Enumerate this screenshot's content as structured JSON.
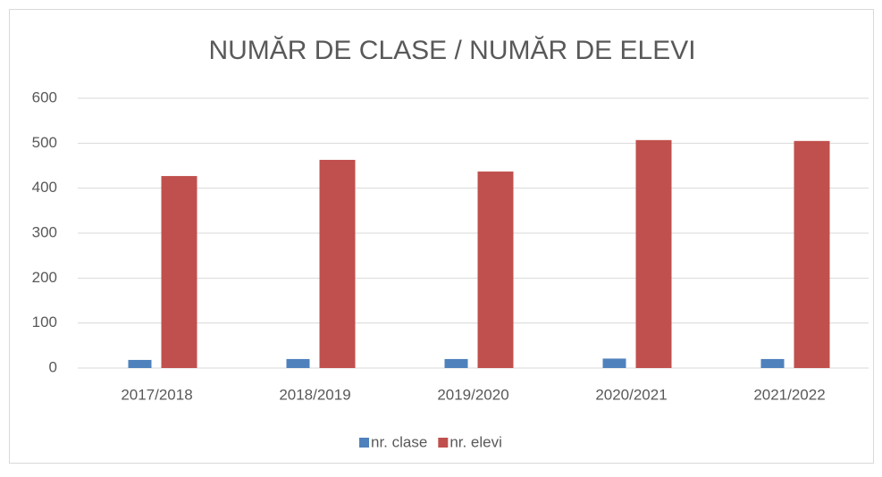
{
  "chart_data": {
    "type": "bar",
    "title": "NUMĂR DE CLASE / NUMĂR DE ELEVI",
    "categories": [
      "2017/2018",
      "2018/2019",
      "2019/2020",
      "2020/2021",
      "2021/2022"
    ],
    "series": [
      {
        "name": "nr. clase",
        "color": "#4f81bd",
        "values": [
          18,
          20,
          20,
          21,
          20
        ]
      },
      {
        "name": "nr. elevi",
        "color": "#c0504d",
        "values": [
          427,
          463,
          437,
          507,
          505
        ]
      }
    ],
    "ylim": [
      0,
      600
    ],
    "yticks": [
      0,
      100,
      200,
      300,
      400,
      500,
      600
    ],
    "grid": true,
    "legend": "bottom"
  }
}
